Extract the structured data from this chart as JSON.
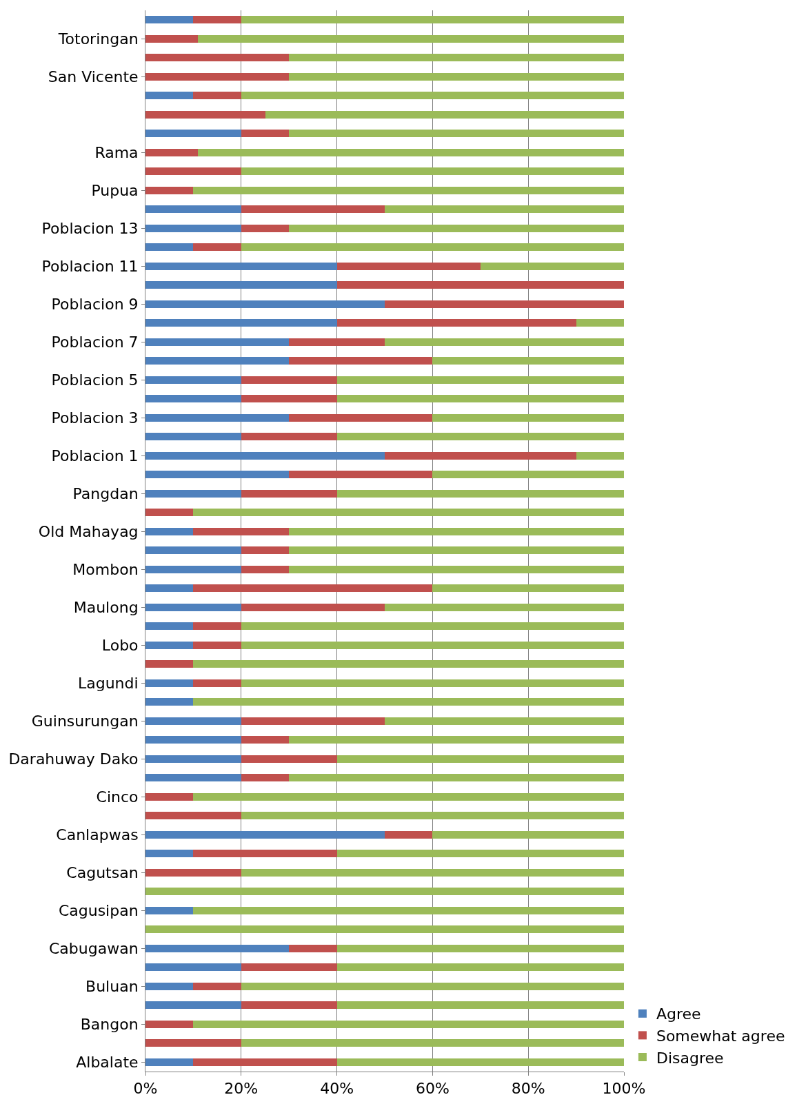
{
  "chart_data": {
    "type": "bar",
    "orientation": "horizontal",
    "stacked": true,
    "categories": [
      null,
      "Totoringan",
      null,
      "San Vicente",
      null,
      null,
      null,
      "Rama",
      null,
      "Pupua",
      null,
      "Poblacion 13",
      null,
      "Poblacion 11",
      null,
      "Poblacion 9",
      null,
      "Poblacion 7",
      null,
      "Poblacion 5",
      null,
      "Poblacion 3",
      null,
      "Poblacion 1",
      null,
      "Pangdan",
      null,
      "Old Mahayag",
      null,
      "Mombon",
      null,
      "Maulong",
      null,
      "Lobo",
      null,
      "Lagundi",
      null,
      "Guinsurungan",
      null,
      "Darahuway Dako",
      null,
      "Cinco",
      null,
      "Canlapwas",
      null,
      "Cagutsan",
      null,
      "Cagusipan",
      null,
      "Cabugawan",
      null,
      "Buluan",
      null,
      "Bangon",
      null,
      "Albalate"
    ],
    "series": [
      {
        "name": "Agree",
        "color": "#4f81bd",
        "values": [
          10,
          0,
          0,
          0,
          10,
          0,
          20,
          0,
          0,
          0,
          20,
          20,
          10,
          40,
          40,
          50,
          40,
          30,
          30,
          20,
          20,
          30,
          20,
          50,
          30,
          20,
          0,
          10,
          20,
          20,
          10,
          20,
          10,
          10,
          0,
          10,
          10,
          20,
          20,
          20,
          20,
          0,
          0,
          50,
          10,
          0,
          0,
          10,
          0,
          30,
          20,
          10,
          20,
          0,
          0,
          10
        ]
      },
      {
        "name": "Somewhat agree",
        "color": "#c0504d",
        "values": [
          10,
          11,
          30,
          30,
          10,
          25,
          10,
          11,
          20,
          10,
          30,
          10,
          10,
          30,
          60,
          50,
          50,
          20,
          30,
          20,
          20,
          30,
          20,
          40,
          30,
          20,
          10,
          20,
          10,
          10,
          50,
          30,
          10,
          10,
          10,
          10,
          0,
          30,
          10,
          20,
          10,
          10,
          20,
          10,
          30,
          20,
          0,
          0,
          0,
          10,
          20,
          10,
          20,
          10,
          20,
          30
        ]
      },
      {
        "name": "Disagree",
        "color": "#9bbb59",
        "values": [
          80,
          89,
          70,
          70,
          80,
          75,
          70,
          89,
          80,
          90,
          50,
          70,
          80,
          30,
          0,
          0,
          10,
          50,
          40,
          60,
          60,
          40,
          60,
          10,
          40,
          60,
          90,
          70,
          70,
          70,
          40,
          50,
          80,
          80,
          90,
          80,
          90,
          50,
          70,
          60,
          70,
          90,
          80,
          40,
          60,
          80,
          100,
          90,
          100,
          60,
          60,
          80,
          60,
          90,
          80,
          60
        ]
      }
    ],
    "xlim": [
      0,
      100
    ],
    "xticks": [
      {
        "value": 0,
        "label": "0%"
      },
      {
        "value": 20,
        "label": "20%"
      },
      {
        "value": 40,
        "label": "40%"
      },
      {
        "value": 60,
        "label": "60%"
      },
      {
        "value": 80,
        "label": "80%"
      },
      {
        "value": 100,
        "label": "100%"
      }
    ],
    "grid": "x",
    "legend": "bottom right"
  }
}
